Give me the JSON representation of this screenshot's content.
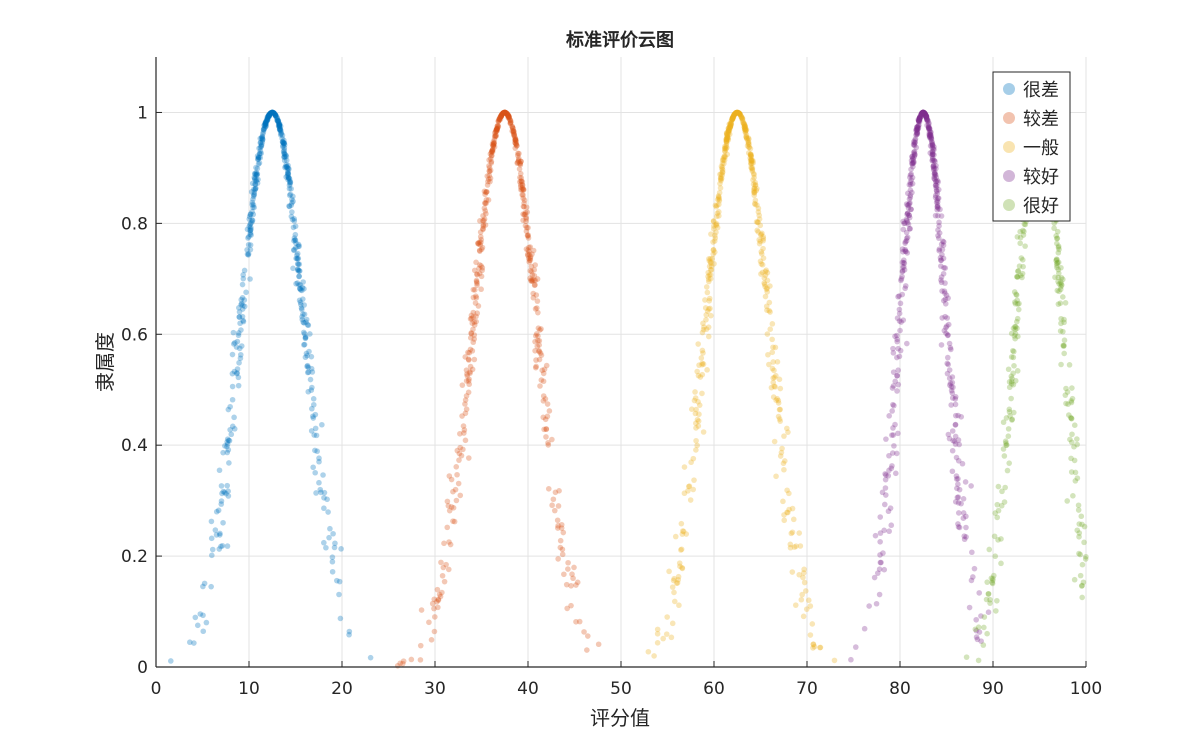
{
  "chart_data": {
    "type": "scatter",
    "title": "标准评价云图",
    "xlabel": "评分值",
    "ylabel": "隶属度",
    "xlim": [
      0,
      100
    ],
    "ylim": [
      0,
      1.1
    ],
    "xticks": [
      "0",
      "10",
      "20",
      "30",
      "40",
      "50",
      "60",
      "70",
      "80",
      "90",
      "100"
    ],
    "yticks": [
      "0",
      "0.2",
      "0.4",
      "0.6",
      "0.8",
      "1"
    ],
    "grid": true,
    "legend_position": "top-right",
    "series": [
      {
        "name": "很差",
        "color": "#0072BD",
        "Ex": 12.5,
        "En": 3.5,
        "He": 0.25,
        "drops": 500
      },
      {
        "name": "较差",
        "color": "#D95319",
        "Ex": 37.5,
        "En": 3.5,
        "He": 0.25,
        "drops": 500
      },
      {
        "name": "一般",
        "color": "#EDB120",
        "Ex": 62.5,
        "En": 3.5,
        "He": 0.25,
        "drops": 500
      },
      {
        "name": "较好",
        "color": "#7E2F8E",
        "Ex": 82.5,
        "En": 2.6,
        "He": 0.25,
        "drops": 500
      },
      {
        "name": "很好",
        "color": "#77AC30",
        "Ex": 95,
        "En": 2.6,
        "He": 0.25,
        "drops": 500
      }
    ]
  }
}
